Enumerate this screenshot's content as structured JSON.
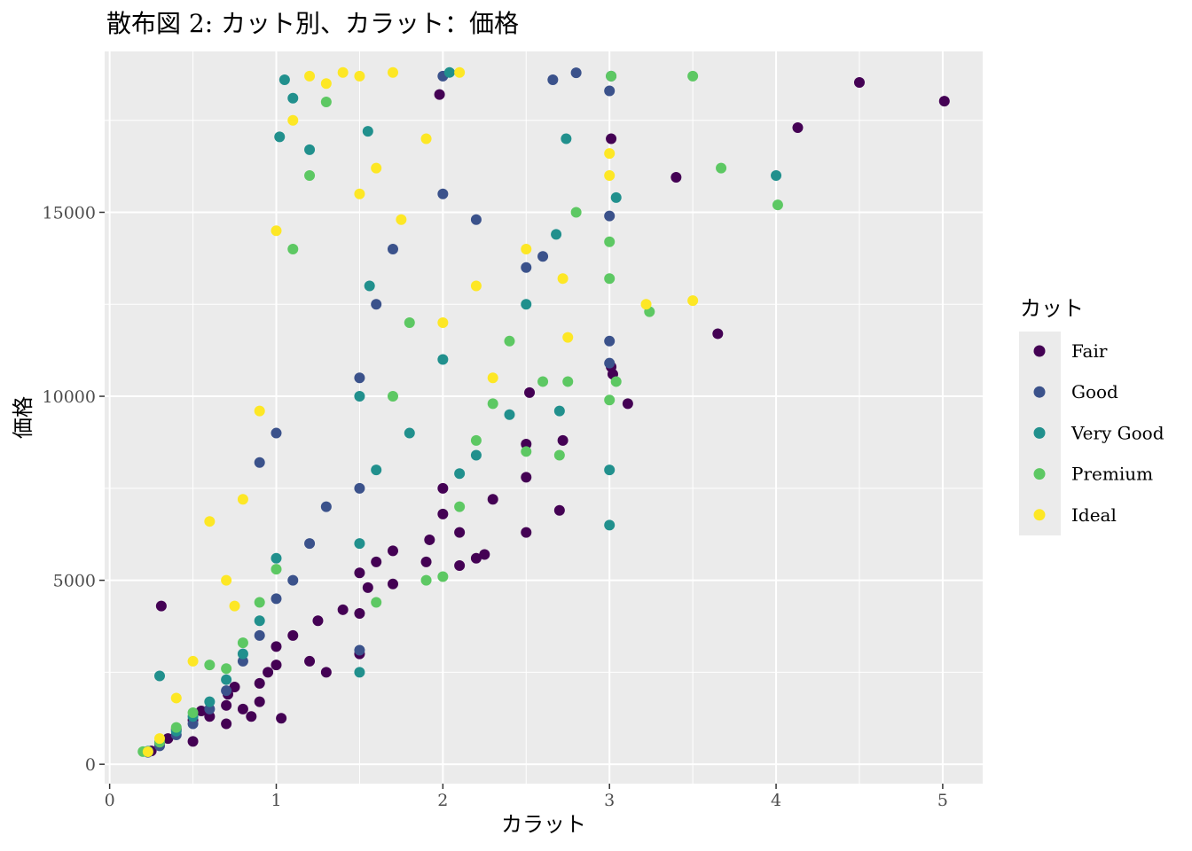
{
  "chart_data": {
    "type": "scatter",
    "title": "散布図 2: カット別、カラット：価格",
    "xlabel": "カラット",
    "ylabel": "価格",
    "xlim": [
      -0.03,
      5.24
    ],
    "ylim": [
      -526,
      19372
    ],
    "x_ticks": [
      0,
      1,
      2,
      3,
      4,
      5
    ],
    "y_ticks": [
      0,
      5000,
      10000,
      15000
    ],
    "x_tick_labels": [
      "0",
      "1",
      "2",
      "3",
      "4",
      "5"
    ],
    "y_tick_labels": [
      "0",
      "5000",
      "10000",
      "15000"
    ],
    "grid": true,
    "legend": {
      "title": "カット",
      "position": "right"
    },
    "series": [
      {
        "name": "Fair",
        "color": "#440154",
        "points": [
          [
            0.25,
            361
          ],
          [
            0.3,
            590
          ],
          [
            0.35,
            700
          ],
          [
            0.4,
            950
          ],
          [
            0.5,
            620
          ],
          [
            0.5,
            1200
          ],
          [
            0.55,
            1450
          ],
          [
            0.6,
            1300
          ],
          [
            0.7,
            1100
          ],
          [
            0.7,
            1600
          ],
          [
            0.71,
            1900
          ],
          [
            0.75,
            2100
          ],
          [
            0.8,
            1500
          ],
          [
            0.85,
            1300
          ],
          [
            0.9,
            1700
          ],
          [
            0.9,
            2200
          ],
          [
            0.95,
            2500
          ],
          [
            1.0,
            2700
          ],
          [
            1.0,
            3200
          ],
          [
            1.03,
            1250
          ],
          [
            1.1,
            3500
          ],
          [
            1.2,
            2800
          ],
          [
            1.3,
            2500
          ],
          [
            1.25,
            3900
          ],
          [
            1.4,
            4200
          ],
          [
            1.5,
            3000
          ],
          [
            1.5,
            4100
          ],
          [
            1.5,
            5200
          ],
          [
            1.55,
            4800
          ],
          [
            1.6,
            5500
          ],
          [
            1.7,
            4900
          ],
          [
            1.7,
            5800
          ],
          [
            1.9,
            5500
          ],
          [
            1.92,
            6100
          ],
          [
            2.0,
            6800
          ],
          [
            2.0,
            7500
          ],
          [
            2.1,
            5400
          ],
          [
            2.1,
            6300
          ],
          [
            2.2,
            5600
          ],
          [
            2.25,
            5700
          ],
          [
            2.3,
            7200
          ],
          [
            2.5,
            6300
          ],
          [
            2.5,
            8700
          ],
          [
            2.5,
            7800
          ],
          [
            2.52,
            10100
          ],
          [
            2.72,
            8800
          ],
          [
            2.7,
            6900
          ],
          [
            3.01,
            10800
          ],
          [
            3.02,
            10600
          ],
          [
            3.01,
            17000
          ],
          [
            3.11,
            9800
          ],
          [
            3.4,
            15950
          ],
          [
            3.65,
            11700
          ],
          [
            4.13,
            17300
          ],
          [
            4.5,
            18530
          ],
          [
            5.01,
            18020
          ],
          [
            0.31,
            4300
          ],
          [
            1.98,
            18200
          ]
        ]
      },
      {
        "name": "Good",
        "color": "#3b528b",
        "points": [
          [
            0.23,
            327
          ],
          [
            0.3,
            500
          ],
          [
            0.4,
            800
          ],
          [
            0.5,
            1100
          ],
          [
            0.6,
            1500
          ],
          [
            0.7,
            2000
          ],
          [
            0.8,
            2800
          ],
          [
            0.9,
            3500
          ],
          [
            0.9,
            8200
          ],
          [
            1.0,
            4500
          ],
          [
            1.0,
            9000
          ],
          [
            1.1,
            5000
          ],
          [
            1.2,
            6000
          ],
          [
            1.3,
            7000
          ],
          [
            1.5,
            3100
          ],
          [
            1.5,
            7500
          ],
          [
            1.5,
            10500
          ],
          [
            1.6,
            12500
          ],
          [
            1.7,
            14000
          ],
          [
            2.0,
            15500
          ],
          [
            2.0,
            18700
          ],
          [
            2.2,
            14800
          ],
          [
            2.5,
            13500
          ],
          [
            2.6,
            13800
          ],
          [
            2.66,
            18600
          ],
          [
            2.8,
            18790
          ],
          [
            3.0,
            18300
          ],
          [
            3.0,
            10900
          ],
          [
            3.0,
            11500
          ],
          [
            3.0,
            14900
          ],
          [
            3.01,
            18700
          ]
        ]
      },
      {
        "name": "Very Good",
        "color": "#21908d",
        "points": [
          [
            0.23,
            357
          ],
          [
            0.3,
            2400
          ],
          [
            0.4,
            900
          ],
          [
            0.5,
            1300
          ],
          [
            0.6,
            1700
          ],
          [
            0.7,
            2300
          ],
          [
            0.8,
            3000
          ],
          [
            0.9,
            3900
          ],
          [
            1.0,
            5600
          ],
          [
            1.02,
            17050
          ],
          [
            1.05,
            18600
          ],
          [
            1.1,
            18100
          ],
          [
            1.2,
            16700
          ],
          [
            1.5,
            2500
          ],
          [
            1.5,
            6000
          ],
          [
            1.5,
            10000
          ],
          [
            1.56,
            13000
          ],
          [
            1.6,
            8000
          ],
          [
            1.8,
            9000
          ],
          [
            2.0,
            11000
          ],
          [
            2.1,
            7900
          ],
          [
            2.2,
            8400
          ],
          [
            2.4,
            9500
          ],
          [
            2.5,
            12500
          ],
          [
            2.68,
            14400
          ],
          [
            2.7,
            9600
          ],
          [
            2.74,
            17000
          ],
          [
            3.0,
            6500
          ],
          [
            3.0,
            8000
          ],
          [
            3.04,
            15400
          ],
          [
            4.0,
            16000
          ],
          [
            1.55,
            17200
          ],
          [
            2.04,
            18800
          ]
        ]
      },
      {
        "name": "Premium",
        "color": "#5dc863",
        "points": [
          [
            0.2,
            345
          ],
          [
            0.3,
            600
          ],
          [
            0.4,
            1000
          ],
          [
            0.5,
            1400
          ],
          [
            0.6,
            2700
          ],
          [
            0.7,
            2600
          ],
          [
            0.8,
            3300
          ],
          [
            0.9,
            4400
          ],
          [
            1.0,
            5300
          ],
          [
            1.1,
            14000
          ],
          [
            1.2,
            16000
          ],
          [
            1.3,
            18000
          ],
          [
            1.6,
            4400
          ],
          [
            1.7,
            10000
          ],
          [
            1.8,
            12000
          ],
          [
            1.9,
            5000
          ],
          [
            2.0,
            5100
          ],
          [
            2.1,
            7000
          ],
          [
            2.2,
            8800
          ],
          [
            2.3,
            9800
          ],
          [
            2.4,
            11500
          ],
          [
            2.5,
            8500
          ],
          [
            2.6,
            10400
          ],
          [
            2.7,
            8400
          ],
          [
            2.75,
            10400
          ],
          [
            2.8,
            15000
          ],
          [
            3.0,
            13200
          ],
          [
            3.0,
            14200
          ],
          [
            3.0,
            9900
          ],
          [
            3.04,
            10400
          ],
          [
            3.01,
            18700
          ],
          [
            3.24,
            12300
          ],
          [
            3.5,
            18700
          ],
          [
            3.67,
            16200
          ],
          [
            4.01,
            15200
          ]
        ]
      },
      {
        "name": "Ideal",
        "color": "#fde725",
        "points": [
          [
            0.23,
            340
          ],
          [
            0.3,
            700
          ],
          [
            0.4,
            1800
          ],
          [
            0.5,
            2800
          ],
          [
            0.6,
            6600
          ],
          [
            0.7,
            5000
          ],
          [
            0.8,
            7200
          ],
          [
            0.9,
            9600
          ],
          [
            1.0,
            14500
          ],
          [
            1.1,
            17500
          ],
          [
            1.2,
            18700
          ],
          [
            1.3,
            18500
          ],
          [
            1.4,
            18800
          ],
          [
            1.5,
            18700
          ],
          [
            1.7,
            18800
          ],
          [
            1.9,
            17000
          ],
          [
            2.0,
            12000
          ],
          [
            2.1,
            18800
          ],
          [
            2.2,
            13000
          ],
          [
            2.3,
            10500
          ],
          [
            2.5,
            14000
          ],
          [
            2.72,
            13200
          ],
          [
            2.75,
            11600
          ],
          [
            3.0,
            16600
          ],
          [
            3.0,
            16000
          ],
          [
            3.22,
            12500
          ],
          [
            3.5,
            12600
          ],
          [
            1.5,
            15500
          ],
          [
            1.6,
            16200
          ],
          [
            1.75,
            14800
          ],
          [
            0.75,
            4300
          ]
        ]
      }
    ]
  }
}
